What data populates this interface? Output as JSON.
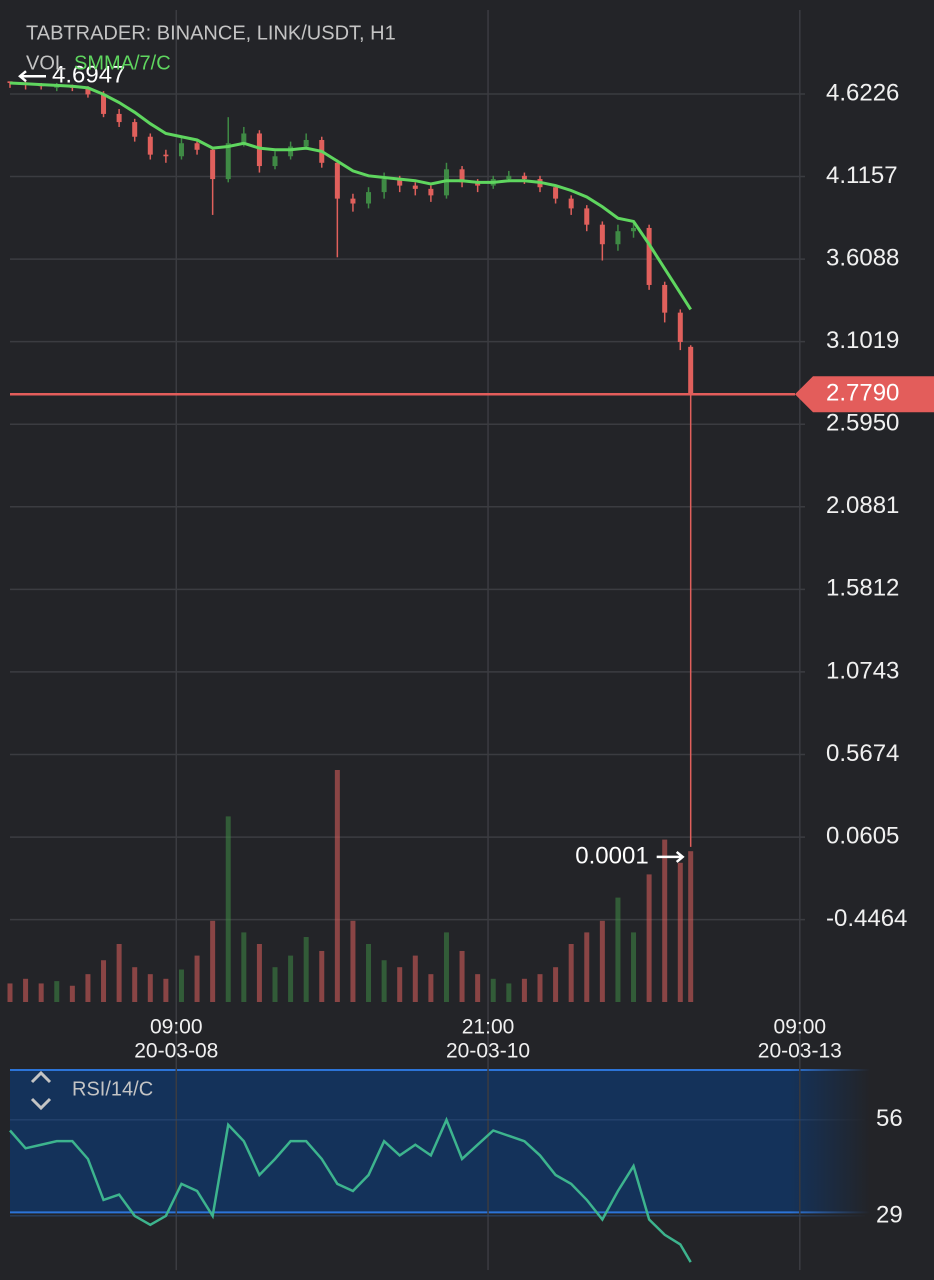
{
  "chart_data": [
    {
      "type": "candlestick",
      "title": "TABTRADER: BINANCE, LINK/USDT, H1",
      "volume_label": "VOL",
      "up_color": "#3f8a45",
      "down_color": "#e0605c",
      "candles": {
        "x": [
          0,
          3,
          6,
          9,
          12,
          15,
          18,
          21,
          24,
          27,
          30,
          33,
          36,
          39,
          42,
          45,
          48,
          51,
          54,
          57,
          60,
          63,
          66,
          69,
          72,
          75,
          78,
          81,
          84,
          87,
          90,
          93,
          96,
          99,
          102,
          105,
          108,
          111,
          114,
          117,
          120,
          123,
          126,
          129,
          131
        ],
        "open": [
          4.7,
          4.69,
          4.68,
          4.67,
          4.67,
          4.66,
          4.62,
          4.5,
          4.45,
          4.36,
          4.25,
          4.24,
          4.32,
          4.28,
          4.1,
          4.32,
          4.38,
          4.18,
          4.24,
          4.3,
          4.34,
          4.2,
          3.98,
          3.95,
          4.02,
          4.1,
          4.06,
          4.04,
          4.0,
          4.16,
          4.08,
          4.06,
          4.1,
          4.12,
          4.1,
          4.05,
          3.98,
          3.92,
          3.82,
          3.7,
          3.78,
          3.8,
          3.45,
          3.28,
          3.07
        ],
        "high": [
          4.6947,
          4.7,
          4.69,
          4.69,
          4.68,
          4.67,
          4.64,
          4.53,
          4.47,
          4.38,
          4.28,
          4.36,
          4.34,
          4.3,
          4.48,
          4.42,
          4.4,
          4.27,
          4.33,
          4.38,
          4.36,
          4.22,
          4.01,
          4.05,
          4.14,
          4.12,
          4.08,
          4.06,
          4.2,
          4.18,
          4.1,
          4.12,
          4.15,
          4.14,
          4.12,
          4.06,
          4.0,
          3.94,
          3.84,
          3.82,
          3.84,
          3.82,
          3.47,
          3.3,
          3.08
        ],
        "low": [
          4.66,
          4.65,
          4.65,
          4.64,
          4.64,
          4.6,
          4.48,
          4.42,
          4.33,
          4.22,
          4.2,
          4.22,
          4.25,
          3.88,
          4.08,
          4.3,
          4.14,
          4.16,
          4.22,
          4.28,
          4.17,
          3.62,
          3.9,
          3.92,
          3.98,
          4.02,
          4.0,
          3.96,
          3.98,
          4.05,
          4.02,
          4.04,
          4.08,
          4.07,
          4.02,
          3.95,
          3.88,
          3.78,
          3.6,
          3.66,
          3.74,
          3.42,
          3.22,
          3.05,
          0.0001
        ],
        "close": [
          4.69,
          4.68,
          4.67,
          4.67,
          4.66,
          4.62,
          4.5,
          4.45,
          4.36,
          4.25,
          4.24,
          4.32,
          4.28,
          4.1,
          4.32,
          4.38,
          4.18,
          4.24,
          4.3,
          4.34,
          4.2,
          3.98,
          3.95,
          4.02,
          4.1,
          4.06,
          4.04,
          4.0,
          4.16,
          4.08,
          4.06,
          4.1,
          4.12,
          4.1,
          4.05,
          3.98,
          3.92,
          3.82,
          3.7,
          3.78,
          3.8,
          3.45,
          3.28,
          3.1,
          2.779
        ],
        "volume": [
          8,
          10,
          8,
          9,
          7,
          12,
          18,
          25,
          15,
          12,
          10,
          14,
          20,
          35,
          80,
          30,
          25,
          15,
          20,
          28,
          22,
          100,
          35,
          25,
          18,
          15,
          20,
          12,
          30,
          22,
          12,
          10,
          8,
          10,
          12,
          15,
          25,
          30,
          35,
          45,
          30,
          55,
          70,
          60,
          65
        ]
      },
      "smma": {
        "name": "SMMA/7/C",
        "color": "#5fd65f",
        "values": [
          4.69,
          4.685,
          4.68,
          4.675,
          4.67,
          4.66,
          4.62,
          4.57,
          4.51,
          4.44,
          4.38,
          4.36,
          4.34,
          4.29,
          4.3,
          4.32,
          4.29,
          4.28,
          4.28,
          4.29,
          4.27,
          4.21,
          4.15,
          4.12,
          4.11,
          4.1,
          4.09,
          4.07,
          4.09,
          4.09,
          4.08,
          4.08,
          4.09,
          4.09,
          4.08,
          4.06,
          4.03,
          3.99,
          3.93,
          3.86,
          3.84,
          3.7,
          3.55,
          3.4,
          3.3
        ]
      },
      "last_price": {
        "value": 2.779,
        "label": "2.7790"
      },
      "last_price_color": "#e35d5b",
      "xlim": [
        0,
        153
      ],
      "xticks": [
        {
          "value": 32,
          "label": "09:00"
        },
        {
          "value": 92,
          "label": "21:00"
        },
        {
          "value": 152,
          "label": "09:00"
        }
      ],
      "xtick_dates": [
        "20-03-08",
        "20-03-10",
        "20-03-13"
      ],
      "ylim": [
        -0.952,
        5.138
      ],
      "yticks": [
        4.6226,
        4.1157,
        3.6088,
        3.1019,
        {
          "value": 2.595,
          "label": "2.5950"
        },
        2.0881,
        1.5812,
        1.0743,
        0.5674,
        0.0605,
        -0.4464
      ],
      "grid": true
    },
    {
      "type": "line",
      "title": "RSI/14/C",
      "color": "#3db48e",
      "band": [
        30,
        70
      ],
      "ylim": [
        13.8,
        70
      ],
      "yticks": [
        56,
        29
      ],
      "values": [
        53,
        48,
        49,
        50,
        50,
        45,
        33.5,
        35,
        29,
        26.5,
        29,
        38,
        36,
        29,
        54.6,
        50,
        40.5,
        45,
        50,
        50,
        45,
        38,
        36,
        40.5,
        50,
        46,
        49,
        46,
        56,
        45,
        49,
        53,
        51.5,
        50,
        46,
        40.5,
        38,
        33.5,
        28,
        36,
        43,
        28,
        23.7,
        21,
        16
      ]
    }
  ]
}
